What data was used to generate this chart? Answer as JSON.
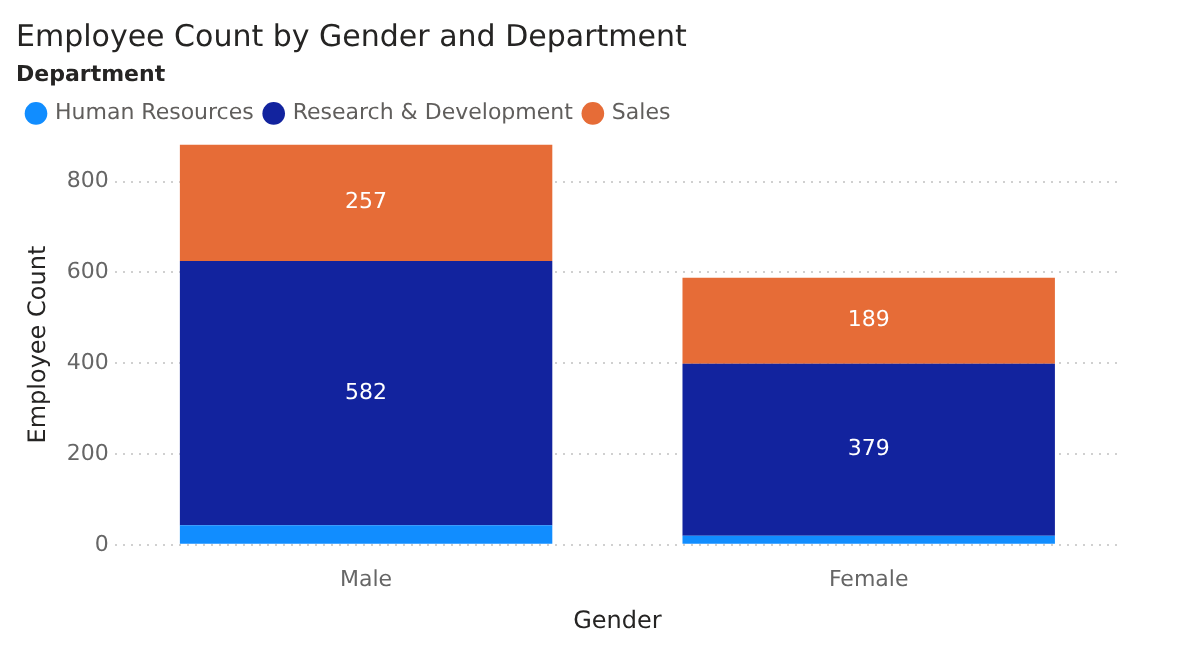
{
  "chart_data": {
    "type": "bar",
    "title": "Employee Count by Gender and Department",
    "xlabel": "Gender",
    "ylabel": "Employee Count",
    "legend_title": "Department",
    "categories": [
      "Male",
      "Female"
    ],
    "stacked": true,
    "series": [
      {
        "name": "Human Resources",
        "color": "#118dff",
        "values": [
          43,
          20
        ],
        "value_labels": [
          null,
          null
        ]
      },
      {
        "name": "Research & Development",
        "color": "#12239e",
        "values": [
          582,
          379
        ],
        "value_labels": [
          "582",
          "379"
        ]
      },
      {
        "name": "Sales",
        "color": "#e66c37",
        "values": [
          257,
          189
        ],
        "value_labels": [
          "257",
          "189"
        ]
      }
    ],
    "ylim": [
      0,
      882
    ],
    "yticks": [
      0,
      200,
      400,
      600,
      800
    ],
    "grid": "y",
    "legend": "top left"
  }
}
